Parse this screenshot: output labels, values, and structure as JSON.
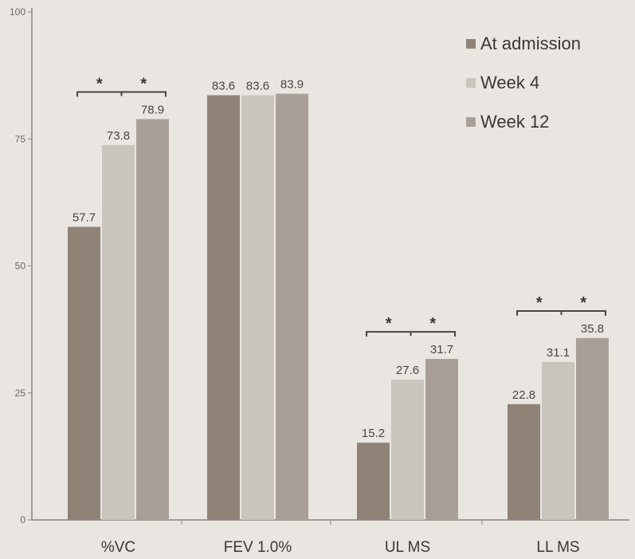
{
  "chart_data": {
    "type": "bar",
    "categories": [
      "%VC",
      "FEV 1.0%",
      "UL MS",
      "LL MS"
    ],
    "series": [
      {
        "name": "At admission",
        "values": [
          57.7,
          83.6,
          15.2,
          22.8
        ]
      },
      {
        "name": "Week 4",
        "values": [
          73.8,
          83.6,
          27.6,
          31.1
        ]
      },
      {
        "name": "Week 12",
        "values": [
          78.9,
          83.9,
          31.7,
          35.8
        ]
      }
    ],
    "value_labels": [
      [
        "57.7",
        "83.6",
        "15.2",
        "22.8"
      ],
      [
        "73.8",
        "83.6",
        "27.6",
        "31.1"
      ],
      [
        "78.9",
        "83.9",
        "31.7",
        "35.8"
      ]
    ],
    "yticks": [
      "0",
      "25",
      "50",
      "75",
      "100"
    ],
    "ylim": [
      0,
      100
    ],
    "legend_position": "top-right",
    "significance": [
      {
        "category": "%VC",
        "marks": [
          "*",
          "*"
        ]
      },
      {
        "category": "UL MS",
        "marks": [
          "*",
          "*"
        ]
      },
      {
        "category": "LL MS",
        "marks": [
          "*",
          "*"
        ]
      }
    ],
    "colors": {
      "At admission": "#8f8277",
      "Week 4": "#c9c4bd",
      "Week 12": "#a8a098",
      "background": "#e9e6e1",
      "axis": "#8a847d"
    },
    "grid": false
  }
}
